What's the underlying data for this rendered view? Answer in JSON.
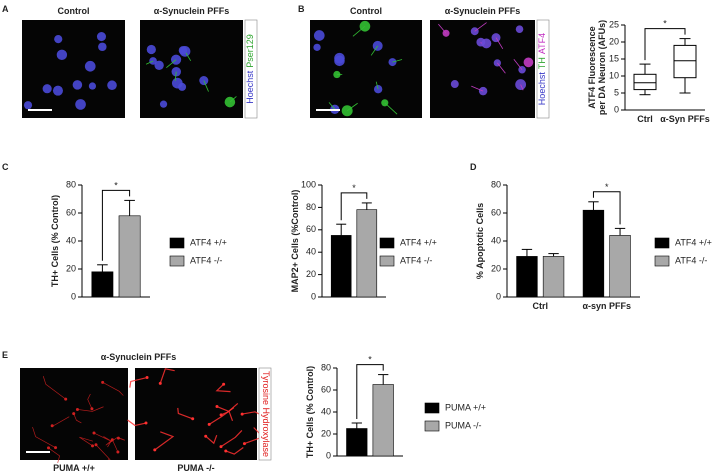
{
  "panel_labels": [
    "A",
    "B",
    "C",
    "D",
    "E"
  ],
  "images": [
    {
      "titles": [
        "Control",
        "α-Synuclein PFFs"
      ],
      "stain": [
        {
          "text": "Hoechst",
          "color": "#3838c8"
        },
        {
          "text": "Pser129",
          "color": "#2fa52f"
        }
      ]
    },
    {
      "titles": [
        "Control",
        "α-Synuclein PFFs"
      ],
      "stain": [
        {
          "text": "Hoechst",
          "color": "#3838c8"
        },
        {
          "text": "TH",
          "color": "#2fa52f"
        },
        {
          "text": "ATF4",
          "color": "#c02cc0"
        }
      ]
    },
    {
      "titles": [
        "α-Synuclein PFFs"
      ],
      "captions": [
        "PUMA +/+",
        "PUMA -/-"
      ],
      "stain": [
        {
          "text": "Tyrosine Hydroxylase",
          "color": "#e02020"
        }
      ]
    }
  ],
  "chart_data": [
    {
      "type": "box",
      "y_label": [
        "ATF4 Fluorescence",
        "per DA Neuron (AFUs)"
      ],
      "categories": [
        "Ctrl",
        "α-Syn PFFs"
      ],
      "boxes": [
        {
          "min": 4.5,
          "q1": 6,
          "median": 8,
          "q3": 10.5,
          "max": 13.5
        },
        {
          "min": 5,
          "q1": 9.5,
          "median": 14.5,
          "q3": 19,
          "max": 21
        }
      ],
      "ylim": [
        0,
        25
      ],
      "yticks": [
        0,
        5,
        10,
        15,
        20,
        25
      ],
      "significance": "*"
    },
    {
      "type": "bar",
      "y_label": "TH+ Cells (% Control)",
      "series": [
        {
          "name": "ATF4 +/+",
          "color": "#000000",
          "values": [
            18
          ],
          "errors": [
            5
          ]
        },
        {
          "name": "ATF4 -/-",
          "color": "#a8a8a8",
          "values": [
            58
          ],
          "errors": [
            11
          ]
        }
      ],
      "ylim": [
        0,
        80
      ],
      "yticks": [
        0,
        20,
        40,
        60,
        80
      ],
      "significance": "*"
    },
    {
      "type": "bar",
      "y_label": "MAP2+ Cells (%Control)",
      "series": [
        {
          "name": "ATF4 +/+",
          "color": "#000000",
          "values": [
            55
          ],
          "errors": [
            10
          ]
        },
        {
          "name": "ATF4 -/-",
          "color": "#a8a8a8",
          "values": [
            78
          ],
          "errors": [
            6
          ]
        }
      ],
      "ylim": [
        0,
        100
      ],
      "yticks": [
        0,
        20,
        40,
        60,
        80,
        100
      ],
      "significance": "*"
    },
    {
      "type": "bar",
      "y_label": "% Apoptotic Cells",
      "categories": [
        "Ctrl",
        "α-syn PFFs"
      ],
      "series": [
        {
          "name": "ATF4 +/+",
          "color": "#000000",
          "values": [
            29,
            62
          ],
          "errors": [
            5,
            6
          ]
        },
        {
          "name": "ATF4 -/-",
          "color": "#a8a8a8",
          "values": [
            29,
            44
          ],
          "errors": [
            2,
            5
          ]
        }
      ],
      "ylim": [
        0,
        80
      ],
      "yticks": [
        0,
        20,
        40,
        60,
        80
      ],
      "significance": "*"
    },
    {
      "type": "bar",
      "y_label": "TH+ Cells (% Control)",
      "series": [
        {
          "name": "PUMA +/+",
          "color": "#000000",
          "values": [
            25
          ],
          "errors": [
            5
          ]
        },
        {
          "name": "PUMA -/-",
          "color": "#a8a8a8",
          "values": [
            65
          ],
          "errors": [
            9
          ]
        }
      ],
      "ylim": [
        0,
        80
      ],
      "yticks": [
        0,
        20,
        40,
        60,
        80
      ],
      "significance": "*"
    }
  ]
}
